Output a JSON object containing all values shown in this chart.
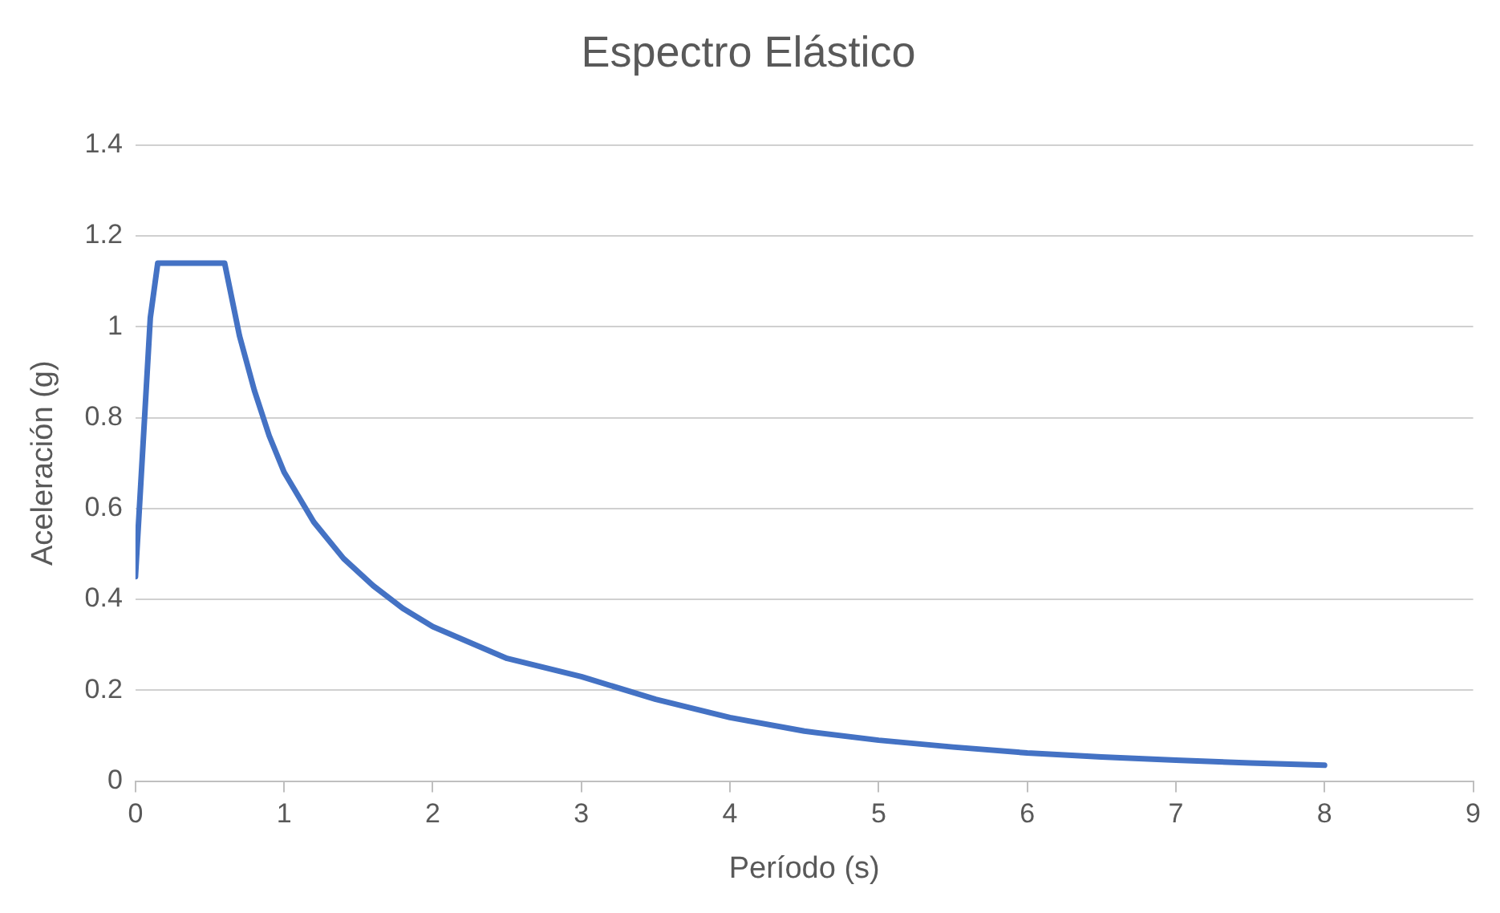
{
  "chart_data": {
    "type": "line",
    "title": "Espectro Elástico",
    "xlabel": "Período (s)",
    "ylabel": "Aceleración (g)",
    "x": [
      0,
      0.1,
      0.15,
      0.6,
      0.7,
      0.8,
      0.9,
      1.0,
      1.2,
      1.4,
      1.6,
      1.8,
      2.0,
      2.5,
      3.0,
      3.5,
      4.0,
      4.5,
      5.0,
      5.5,
      6.0,
      6.5,
      7.0,
      7.5,
      8.0
    ],
    "series": [
      {
        "color": "#4472c4",
        "values": [
          0.45,
          1.02,
          1.14,
          1.14,
          0.98,
          0.86,
          0.76,
          0.68,
          0.57,
          0.49,
          0.43,
          0.38,
          0.34,
          0.27,
          0.23,
          0.18,
          0.14,
          0.11,
          0.09,
          0.075,
          0.062,
          0.053,
          0.046,
          0.04,
          0.035
        ]
      }
    ],
    "xlim": [
      0,
      9
    ],
    "xticks": [
      0,
      1,
      2,
      3,
      4,
      5,
      6,
      7,
      8,
      9
    ],
    "ylim": [
      0,
      1.4
    ],
    "yticks": [
      0,
      0.2,
      0.4,
      0.6,
      0.8,
      1,
      1.2,
      1.4
    ],
    "grid": "y",
    "legend": false,
    "marker": "none",
    "line_style": "solid"
  }
}
